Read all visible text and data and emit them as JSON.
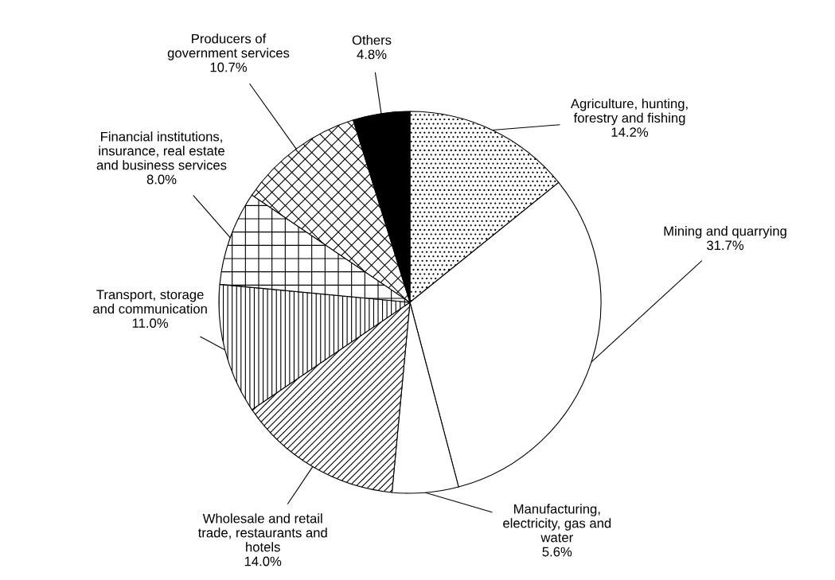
{
  "chart_data": {
    "type": "pie",
    "categories": [
      "Agriculture, hunting,\nforestry and fishing",
      "Mining and quarrying",
      "Manufacturing,\nelectricity, gas and\nwater",
      "Wholesale and retail\ntrade, restaurants and\nhotels",
      "Transport, storage\nand communication",
      "Financial institutions,\ninsurance, real estate\nand business services",
      "Producers of\ngovernment services",
      "Others"
    ],
    "values": [
      14.2,
      31.7,
      5.6,
      14.0,
      11.0,
      8.0,
      10.7,
      4.8
    ],
    "value_labels": [
      "14.2%",
      "31.7%",
      "5.6%",
      "14.0%",
      "11.0%",
      "8.0%",
      "10.7%",
      "4.8%"
    ],
    "colors": [
      "#ffffff",
      "#ffffff",
      "#ffffff",
      "#ffffff",
      "#ffffff",
      "#ffffff",
      "#ffffff",
      "#000000"
    ],
    "legend": false
  }
}
